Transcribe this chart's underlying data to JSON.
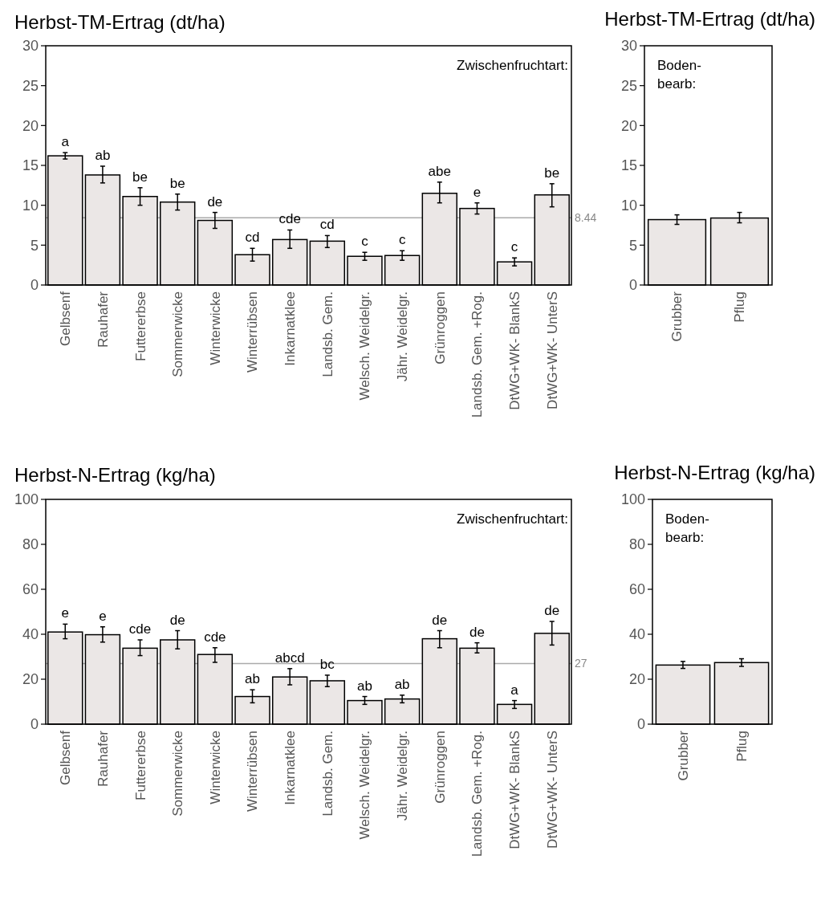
{
  "chart_data": [
    {
      "type": "bar",
      "title": "Herbst-TM-Ertrag  (dt/ha)",
      "categories": [
        "Gelbsenf",
        "Rauhafer",
        "Futtererbse",
        "Sommerwicke",
        "Winterwicke",
        "Winterrübsen",
        "Inkarnatklee",
        "Landsb. Gem.",
        "Welsch. Weidelgr.",
        "Jähr. Weidelgr.",
        "Grünroggen",
        "Landsb. Gem. +Rog.",
        "DtWG+WK- BlankS",
        "DtWG+WK- UnterS"
      ],
      "values": [
        16.2,
        13.8,
        11.1,
        10.4,
        8.1,
        3.8,
        5.7,
        5.5,
        3.6,
        3.7,
        11.5,
        9.6,
        2.9,
        11.3
      ],
      "errors": [
        [
          15.8,
          16.6
        ],
        [
          12.8,
          14.9
        ],
        [
          10.0,
          12.2
        ],
        [
          9.4,
          11.4
        ],
        [
          7.1,
          9.1
        ],
        [
          3.0,
          4.6
        ],
        [
          4.6,
          6.9
        ],
        [
          4.7,
          6.2
        ],
        [
          3.1,
          4.1
        ],
        [
          3.1,
          4.3
        ],
        [
          10.3,
          12.9
        ],
        [
          8.9,
          10.3
        ],
        [
          2.4,
          3.4
        ],
        [
          9.8,
          12.7
        ]
      ],
      "color": "#ebe7e6",
      "ylim": [
        0,
        30
      ],
      "yticks": [
        0,
        5,
        10,
        15,
        20,
        25,
        30
      ],
      "ref_lines": [
        {
          "axis": "y",
          "value": 8.44,
          "label": "8.44",
          "color": "#aaaaaa"
        }
      ],
      "annotations": [
        "Zwischenfruchtart:",
        {
          "text": "a",
          "x": "Gelbsenf",
          "y": 16.2
        },
        {
          "text": "ab",
          "x": "Rauhafer",
          "y": 13.8
        },
        {
          "text": "be",
          "x": "Futtererbse",
          "y": 11.1
        },
        {
          "text": "be",
          "x": "Sommerwicke",
          "y": 10.4
        },
        {
          "text": "de",
          "x": "Winterwicke",
          "y": 8.1
        },
        {
          "text": "cd",
          "x": "Winterrübsen",
          "y": 3.8
        },
        {
          "text": "cde",
          "x": "Inkarnatklee",
          "y": 5.7
        },
        {
          "text": "cd",
          "x": "Landsb. Gem.",
          "y": 5.5
        },
        {
          "text": "c",
          "x": "Welsch. Weidelgr.",
          "y": 3.6
        },
        {
          "text": "c",
          "x": "Jähr. Weidelgr.",
          "y": 3.7
        },
        {
          "text": "abe",
          "x": "Grünroggen",
          "y": 11.5
        },
        {
          "text": "e",
          "x": "Landsb. Gem. +Rog.",
          "y": 9.6
        },
        {
          "text": "c",
          "x": "DtWG+WK- BlankS",
          "y": 2.9
        },
        {
          "text": "be",
          "x": "DtWG+WK- UnterS",
          "y": 11.3
        }
      ]
    },
    {
      "type": "bar",
      "title": "Herbst-TM-Ertrag  (dt/ha)",
      "categories": [
        "Grubber",
        "Pflug"
      ],
      "values": [
        8.2,
        8.4
      ],
      "errors": [
        [
          7.6,
          8.8
        ],
        [
          7.8,
          9.1
        ]
      ],
      "color": "#ebe7e6",
      "ylim": [
        0,
        30
      ],
      "yticks": [
        0,
        5,
        10,
        15,
        20,
        25,
        30
      ],
      "annotations": [
        "Boden-\nbearb:"
      ]
    },
    {
      "type": "bar",
      "title": "Herbst-N-Ertrag  (kg/ha)",
      "categories": [
        "Gelbsenf",
        "Rauhafer",
        "Futtererbse",
        "Sommerwicke",
        "Winterwicke",
        "Winterrübsen",
        "Inkarnatklee",
        "Landsb. Gem.",
        "Welsch. Weidelgr.",
        "Jähr. Weidelgr.",
        "Grünroggen",
        "Landsb. Gem. +Rog.",
        "DtWG+WK- BlankS",
        "DtWG+WK- UnterS"
      ],
      "values": [
        41,
        39.8,
        33.8,
        37.5,
        31,
        12.3,
        21,
        19.3,
        10.5,
        11.2,
        38,
        33.8,
        8.8,
        40.4
      ],
      "errors": [
        [
          38,
          44.5
        ],
        [
          36.5,
          43.3
        ],
        [
          30.5,
          37.5
        ],
        [
          33.5,
          41.6
        ],
        [
          27.5,
          34
        ],
        [
          9.5,
          15.3
        ],
        [
          17.5,
          24.7
        ],
        [
          16.7,
          21.8
        ],
        [
          8.8,
          12.3
        ],
        [
          9.5,
          12.9
        ],
        [
          34,
          41.6
        ],
        [
          31.7,
          36.2
        ],
        [
          7,
          10.5
        ],
        [
          35.2,
          45.7
        ]
      ],
      "color": "#ebe7e6",
      "ylim": [
        0,
        100
      ],
      "yticks": [
        0,
        20,
        40,
        60,
        80,
        100
      ],
      "ref_lines": [
        {
          "axis": "y",
          "value": 27,
          "label": "27",
          "color": "#aaaaaa"
        }
      ],
      "annotations": [
        "Zwischenfruchtart:",
        {
          "text": "e",
          "x": "Gelbsenf",
          "y": 41
        },
        {
          "text": "e",
          "x": "Rauhafer",
          "y": 39.8
        },
        {
          "text": "cde",
          "x": "Futtererbse",
          "y": 33.8
        },
        {
          "text": "de",
          "x": "Sommerwicke",
          "y": 37.5
        },
        {
          "text": "cde",
          "x": "Winterwicke",
          "y": 31
        },
        {
          "text": "ab",
          "x": "Winterrübsen",
          "y": 12.3
        },
        {
          "text": "abcd",
          "x": "Inkarnatklee",
          "y": 21
        },
        {
          "text": "bc",
          "x": "Landsb. Gem.",
          "y": 19.3
        },
        {
          "text": "ab",
          "x": "Welsch. Weidelgr.",
          "y": 10.5
        },
        {
          "text": "ab",
          "x": "Jähr. Weidelgr.",
          "y": 11.2
        },
        {
          "text": "de",
          "x": "Grünroggen",
          "y": 38
        },
        {
          "text": "de",
          "x": "Landsb. Gem. +Rog.",
          "y": 33.8
        },
        {
          "text": "a",
          "x": "DtWG+WK- BlankS",
          "y": 8.8
        },
        {
          "text": "de",
          "x": "DtWG+WK- UnterS",
          "y": 40.4
        }
      ]
    },
    {
      "type": "bar",
      "title": "Herbst-N-Ertrag  (kg/ha)",
      "categories": [
        "Grubber",
        "Pflug"
      ],
      "values": [
        26.3,
        27.4
      ],
      "errors": [
        [
          24.8,
          27.9
        ],
        [
          25.7,
          29.1
        ]
      ],
      "color": "#ebe7e6",
      "ylim": [
        0,
        100
      ],
      "yticks": [
        0,
        20,
        40,
        60,
        80,
        100
      ],
      "annotations": [
        "Boden-\nbearb:"
      ]
    }
  ]
}
